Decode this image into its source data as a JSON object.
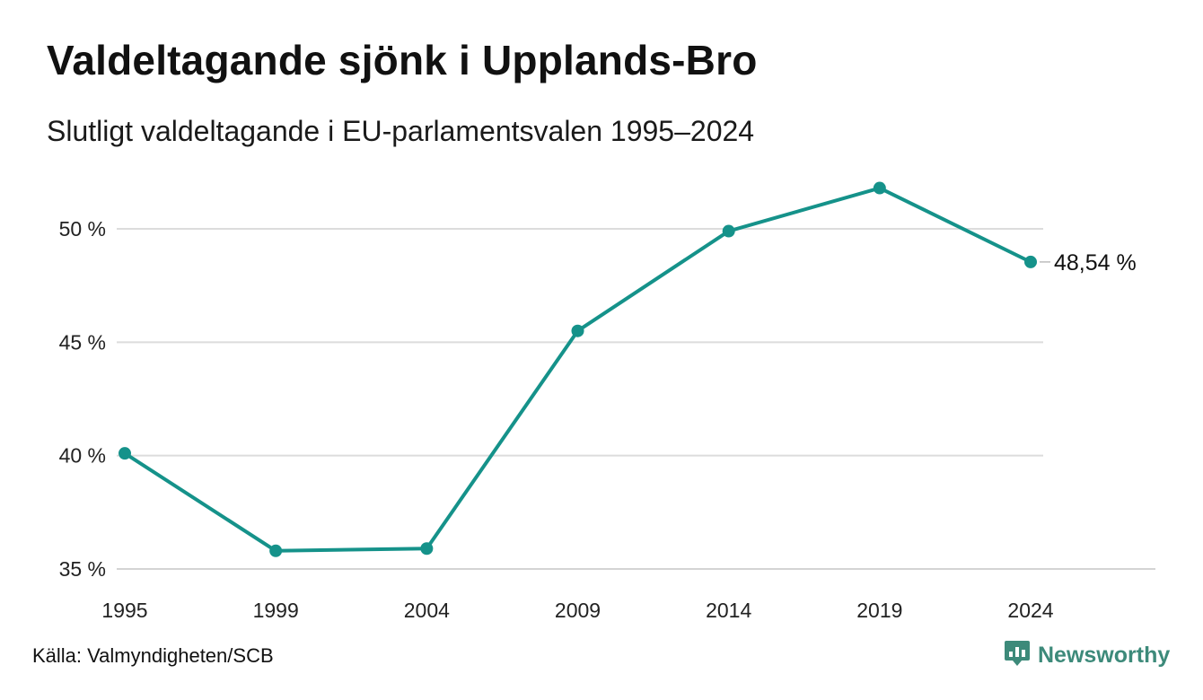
{
  "title": "Valdeltagande sjönk i Upplands-Bro",
  "subtitle": "Slutligt valdeltagande i EU-parlamentsvalen 1995–2024",
  "source": "Källa: Valmyndigheten/SCB",
  "brand": {
    "name": "Newsworthy",
    "icon": "newsworthy-logo-icon",
    "color": "#3d8a7a"
  },
  "chart_data": {
    "type": "line",
    "title": "Valdeltagande sjönk i Upplands-Bro",
    "subtitle": "Slutligt valdeltagande i EU-parlamentsvalen 1995–2024",
    "x": [
      "1995",
      "1999",
      "2004",
      "2009",
      "2014",
      "2019",
      "2024"
    ],
    "series": [
      {
        "values": [
          40.1,
          35.8,
          35.9,
          45.5,
          49.9,
          51.8,
          48.54
        ],
        "color": "#15928a"
      }
    ],
    "y_ticks": [
      35,
      40,
      45,
      50
    ],
    "y_tick_labels": [
      "35 %",
      "40 %",
      "45 %",
      "50 %"
    ],
    "ylim": [
      35,
      53
    ],
    "end_label": "48,54 %",
    "grid": "horizontal",
    "xlabel": "",
    "ylabel": ""
  }
}
